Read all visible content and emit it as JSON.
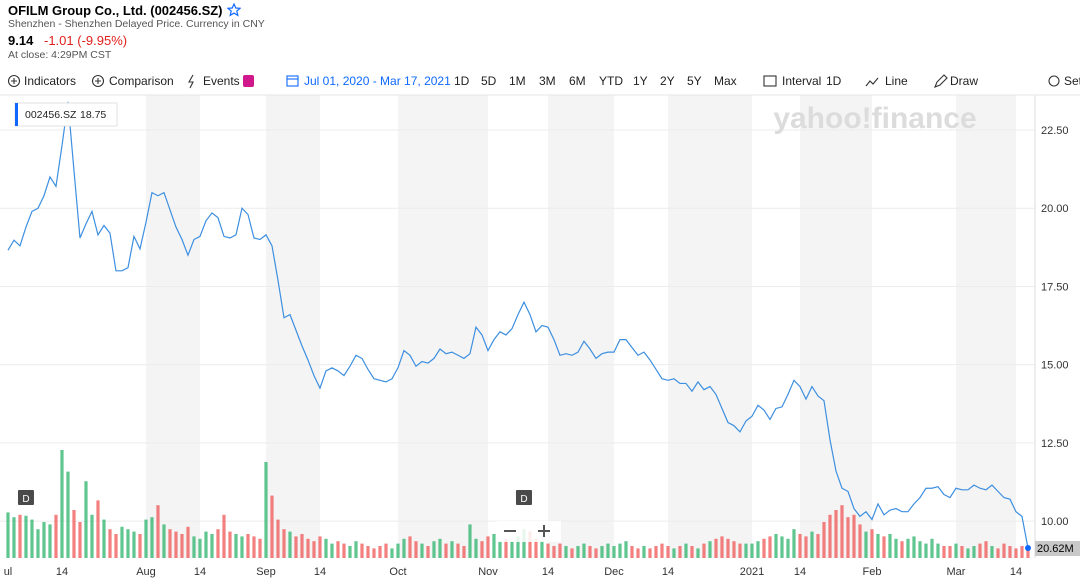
{
  "header": {
    "title": "OFILM Group Co., Ltd. (002456.SZ)",
    "subtitle": "Shenzhen - Shenzhen Delayed Price. Currency in CNY",
    "price": 9.14,
    "change": "-1.01 (-9.95%)",
    "close_time": "At close: 4:29PM CST"
  },
  "toolbar": {
    "indicators": "Indicators",
    "comparison": "Comparison",
    "events": "Events",
    "date_range": "Jul 01, 2020 - Mar 17, 2021",
    "ranges": [
      "1D",
      "5D",
      "1M",
      "3M",
      "6M",
      "YTD",
      "1Y",
      "2Y",
      "5Y",
      "Max"
    ],
    "interval": "Interval",
    "interval_value": "1D",
    "line": "Line",
    "draw": "Draw",
    "settings": "Set"
  },
  "chart_data": {
    "type": "line",
    "watermark": "yahoo!finance",
    "legend_value": 18.75,
    "x": [
      0,
      1,
      2,
      3,
      4,
      5,
      6,
      7,
      8,
      9,
      10,
      11,
      12,
      13,
      14,
      15,
      16,
      17,
      18,
      19,
      20,
      21,
      22,
      23,
      24,
      25,
      26,
      27,
      28,
      29,
      30,
      31,
      32,
      33,
      34,
      35,
      36,
      37,
      38,
      39,
      40,
      41,
      42,
      43,
      44,
      45,
      46,
      47,
      48,
      49,
      50,
      51,
      52,
      53,
      54,
      55,
      56,
      57,
      58,
      59,
      60,
      61,
      62,
      63,
      64,
      65,
      66,
      67,
      68,
      69,
      70,
      71,
      72,
      73,
      74,
      75,
      76,
      77,
      78,
      79,
      80,
      81,
      82,
      83,
      84,
      85,
      86,
      87,
      88,
      89,
      90,
      91,
      92,
      93,
      94,
      95,
      96,
      97,
      98,
      99,
      100,
      101,
      102,
      103,
      104,
      105,
      106,
      107,
      108,
      109,
      110,
      111,
      112,
      113,
      114,
      115,
      116,
      117,
      118,
      119,
      120,
      121,
      122,
      123,
      124,
      125,
      126,
      127,
      128,
      129,
      130,
      131,
      132,
      133,
      134,
      135,
      136,
      137,
      138,
      139,
      140,
      141,
      142,
      143,
      144,
      145,
      146,
      147,
      148,
      149,
      150,
      151,
      152,
      153,
      154,
      155,
      156,
      157,
      158,
      159,
      160,
      161,
      162,
      163,
      164,
      165,
      166,
      167,
      168,
      169,
      170
    ],
    "series": [
      {
        "name": "002456.SZ",
        "color": "#3d8fe0",
        "values": [
          18.66,
          18.98,
          18.8,
          19.4,
          19.9,
          20.0,
          20.4,
          21.0,
          20.7,
          22.0,
          23.4,
          21.2,
          19.05,
          19.5,
          19.9,
          19.15,
          19.45,
          19.2,
          18.0,
          18.0,
          18.1,
          19.1,
          18.7,
          19.55,
          20.5,
          20.4,
          20.5,
          19.95,
          19.4,
          19.0,
          18.5,
          19.0,
          19.1,
          19.6,
          19.85,
          19.7,
          19.1,
          19.05,
          19.15,
          20.0,
          19.8,
          19.05,
          19.0,
          19.15,
          18.8,
          17.7,
          16.5,
          16.6,
          16.1,
          15.6,
          15.15,
          14.65,
          14.25,
          14.8,
          14.9,
          14.8,
          14.65,
          14.95,
          15.3,
          15.2,
          14.85,
          14.55,
          14.5,
          14.45,
          14.55,
          14.9,
          15.45,
          15.3,
          14.95,
          15.1,
          15.05,
          15.2,
          15.5,
          15.35,
          15.4,
          15.3,
          15.2,
          15.35,
          16.2,
          15.95,
          15.45,
          15.8,
          16.05,
          15.95,
          16.15,
          16.6,
          17.0,
          16.6,
          16.05,
          16.25,
          16.2,
          15.8,
          15.3,
          15.35,
          15.3,
          15.4,
          15.75,
          15.5,
          15.2,
          15.35,
          15.4,
          15.4,
          15.8,
          15.8,
          15.55,
          15.3,
          15.4,
          15.15,
          14.85,
          14.55,
          14.5,
          14.55,
          14.4,
          14.4,
          14.15,
          14.45,
          14.2,
          14.3,
          14.05,
          13.6,
          13.15,
          13.05,
          12.85,
          13.2,
          13.35,
          13.7,
          13.55,
          13.25,
          13.6,
          13.65,
          14.05,
          14.5,
          14.3,
          13.9,
          14.3,
          14.0,
          13.85,
          12.6,
          11.6,
          11.05,
          10.95,
          10.4,
          10.15,
          10.3,
          10.05,
          10.55,
          10.2,
          10.35,
          10.4,
          10.3,
          10.3,
          10.55,
          10.75,
          11.05,
          11.05,
          11.1,
          10.85,
          10.75,
          11.05,
          11.0,
          11.0,
          11.15,
          11.05,
          11.0,
          11.15,
          10.95,
          10.75,
          10.7,
          10.3,
          10.15,
          9.14
        ]
      }
    ],
    "volume": {
      "up_color": "#2ab36a",
      "down_color": "#f05454",
      "last_label": "20.62M",
      "values": [
        95,
        85,
        90,
        88,
        80,
        60,
        75,
        70,
        90,
        225,
        180,
        100,
        75,
        160,
        90,
        120,
        80,
        60,
        50,
        65,
        60,
        55,
        50,
        80,
        85,
        110,
        70,
        60,
        55,
        50,
        65,
        45,
        40,
        55,
        50,
        60,
        90,
        55,
        50,
        45,
        50,
        45,
        40,
        200,
        130,
        80,
        60,
        55,
        45,
        50,
        40,
        35,
        45,
        40,
        30,
        35,
        30,
        25,
        35,
        30,
        25,
        20,
        25,
        30,
        20,
        30,
        40,
        45,
        35,
        30,
        25,
        35,
        40,
        30,
        35,
        30,
        25,
        70,
        40,
        35,
        45,
        50,
        35,
        40,
        35,
        45,
        60,
        55,
        40,
        35,
        30,
        25,
        30,
        25,
        20,
        25,
        30,
        25,
        20,
        25,
        30,
        25,
        30,
        35,
        25,
        20,
        25,
        20,
        25,
        30,
        25,
        20,
        25,
        30,
        25,
        20,
        30,
        35,
        40,
        45,
        40,
        35,
        30,
        30,
        30,
        35,
        40,
        45,
        50,
        45,
        40,
        60,
        50,
        45,
        55,
        50,
        75,
        90,
        100,
        110,
        85,
        90,
        70,
        55,
        60,
        50,
        45,
        50,
        40,
        35,
        40,
        45,
        35,
        30,
        40,
        30,
        25,
        25,
        30,
        25,
        20,
        25,
        30,
        35,
        25,
        20,
        30,
        25,
        20,
        25,
        20.62
      ]
    },
    "events": [
      {
        "x": 3,
        "label": "D"
      },
      {
        "x": 86,
        "label": "D"
      }
    ],
    "xlim": [
      -1.33,
      171.17
    ],
    "xticks": [
      {
        "value": 0,
        "label": "ul"
      },
      {
        "value": 9,
        "label": "14"
      },
      {
        "value": 23,
        "label": "Aug"
      },
      {
        "value": 32,
        "label": "14"
      },
      {
        "value": 43,
        "label": "Sep"
      },
      {
        "value": 52,
        "label": "14"
      },
      {
        "value": 65,
        "label": "Oct"
      },
      {
        "value": 80,
        "label": "Nov"
      },
      {
        "value": 90,
        "label": "14"
      },
      {
        "value": 101,
        "label": "Dec"
      },
      {
        "value": 110,
        "label": "14"
      },
      {
        "value": 124,
        "label": "2021"
      },
      {
        "value": 132,
        "label": "14"
      },
      {
        "value": 144,
        "label": "Feb"
      },
      {
        "value": 158,
        "label": "Mar"
      },
      {
        "value": 168,
        "label": "14"
      }
    ],
    "ylim": [
      8.82,
      23.62
    ],
    "yticks": [
      {
        "value": 10,
        "label": "10.00"
      },
      {
        "value": 12.5,
        "label": "12.50"
      },
      {
        "value": 15,
        "label": "15.00"
      },
      {
        "value": 17.5,
        "label": "17.50"
      },
      {
        "value": 20,
        "label": "20.00"
      },
      {
        "value": 22.5,
        "label": "22.50"
      }
    ],
    "grid": true
  }
}
